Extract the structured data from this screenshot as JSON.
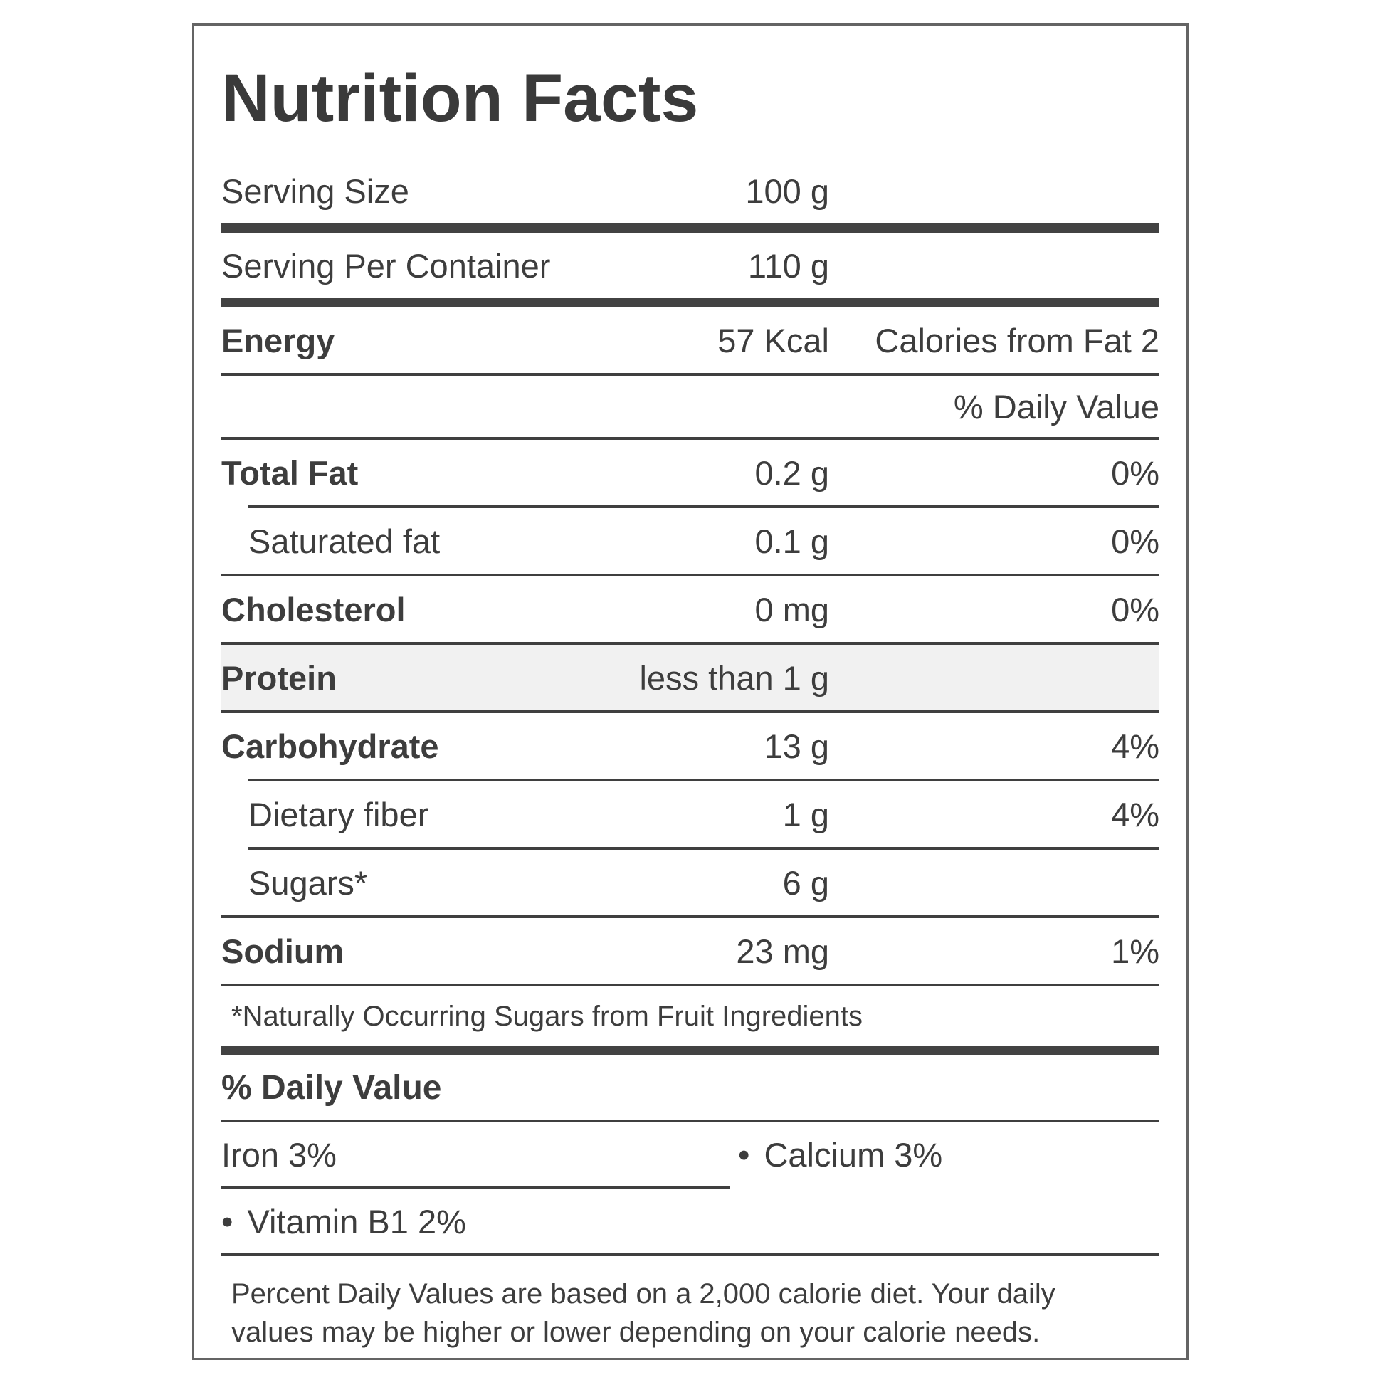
{
  "label": {
    "title": "Nutrition Facts",
    "serving": [
      {
        "name": "Serving Size",
        "amount": "100 g"
      },
      {
        "name": "Serving Per Container",
        "amount": "110 g"
      }
    ],
    "energy": {
      "name": "Energy",
      "amount": "57 Kcal",
      "calories_from_fat": "Calories from Fat 2"
    },
    "daily_value_note": "% Daily Value",
    "nutrients": [
      {
        "name": "Total Fat",
        "amount": "0.2 g",
        "dv": "0%",
        "bold": true,
        "indent": false,
        "highlight": false,
        "divider_after": "indented"
      },
      {
        "name": "Saturated fat",
        "amount": "0.1 g",
        "dv": "0%",
        "bold": false,
        "indent": true,
        "highlight": false,
        "divider_after": "full"
      },
      {
        "name": "Cholesterol",
        "amount": "0 mg",
        "dv": "0%",
        "bold": true,
        "indent": false,
        "highlight": false,
        "divider_after": "full"
      },
      {
        "name": "Protein",
        "amount": "less than 1 g",
        "dv": "",
        "bold": true,
        "indent": false,
        "highlight": true,
        "divider_after": "full"
      },
      {
        "name": "Carbohydrate",
        "amount": "13 g",
        "dv": "4%",
        "bold": true,
        "indent": false,
        "highlight": false,
        "divider_after": "indented"
      },
      {
        "name": "Dietary fiber",
        "amount": "1 g",
        "dv": "4%",
        "bold": false,
        "indent": true,
        "highlight": false,
        "divider_after": "indented"
      },
      {
        "name": "Sugars*",
        "amount": "6 g",
        "dv": "",
        "bold": false,
        "indent": true,
        "highlight": false,
        "divider_after": "full"
      },
      {
        "name": "Sodium",
        "amount": "23 mg",
        "dv": "1%",
        "bold": true,
        "indent": false,
        "highlight": false,
        "divider_after": "full"
      }
    ],
    "footnote": "*Naturally Occurring Sugars from Fruit Ingredients",
    "bottom": {
      "heading": "% Daily Value",
      "minerals": [
        {
          "text": "Iron 3%",
          "bullet": false
        },
        {
          "text": "Calcium 3%",
          "bullet": true
        },
        {
          "text": "Vitamin B1 2%",
          "bullet": true
        }
      ],
      "disclaimer": "Percent Daily Values are based on a 2,000 calorie diet. Your daily values may be higher or lower depending on your calorie needs."
    },
    "colors": {
      "text": "#3d3d3d",
      "rule": "#3f3f3f",
      "thick_bar": "#424242",
      "highlight_bg": "#f1f1f1",
      "border": "#646464",
      "background": "#ffffff"
    }
  }
}
